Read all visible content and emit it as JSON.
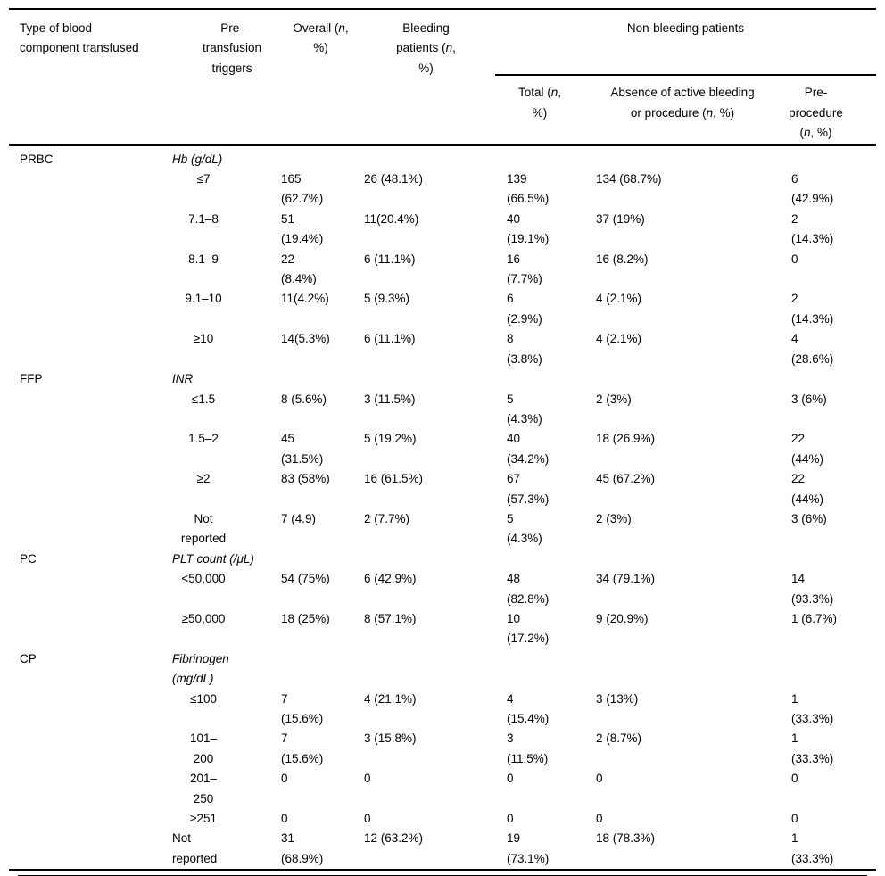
{
  "colors": {
    "text": "#000000",
    "rule": "#000000",
    "background": "#ffffff"
  },
  "table": {
    "columns": {
      "component": "Type of blood\ncomponent transfused",
      "triggers": "Pre-\ntransfusion\ntriggers",
      "overall": "Overall (*n*,\n%)",
      "bleeding": "Bleeding\npatients (*n*,\n%)",
      "non_bleeding_group": "Non-bleeding patients",
      "total": "Total (*n*,\n%)",
      "absence": "Absence of active bleeding\nor procedure (*n*, %)",
      "pre_procedure": "Pre-\nprocedure\n(*n*, %)"
    },
    "sections": [
      {
        "component": "PRBC",
        "trigger_label": "Hb (g/dL)",
        "rows": [
          {
            "trigger": "≤7",
            "overall": "165\n(62.7%)",
            "bleeding": "26 (48.1%)",
            "total": "139\n(66.5%)",
            "absence": "134 (68.7%)",
            "pre": "6\n(42.9%)"
          },
          {
            "trigger": "7.1–8",
            "overall": "51\n(19.4%)",
            "bleeding": "11(20.4%)",
            "total": "40\n(19.1%)",
            "absence": "37 (19%)",
            "pre": "2\n(14.3%)"
          },
          {
            "trigger": "8.1–9",
            "overall": "22\n(8.4%)",
            "bleeding": "6 (11.1%)",
            "total": "16\n(7.7%)",
            "absence": "16 (8.2%)",
            "pre": "0"
          },
          {
            "trigger": "9.1–10",
            "overall": "11(4.2%)",
            "bleeding": "5 (9.3%)",
            "total": "6\n(2.9%)",
            "absence": "4 (2.1%)",
            "pre": "2\n(14.3%)"
          },
          {
            "trigger": "≥10",
            "overall": "14(5.3%)",
            "bleeding": "6 (11.1%)",
            "total": "8\n(3.8%)",
            "absence": "4 (2.1%)",
            "pre": "4\n(28.6%)"
          }
        ]
      },
      {
        "component": "FFP",
        "trigger_label": "INR",
        "rows": [
          {
            "trigger": "≤1.5",
            "overall": "8 (5.6%)",
            "bleeding": "3 (11.5%)",
            "total": "5\n(4.3%)",
            "absence": "2 (3%)",
            "pre": "3 (6%)"
          },
          {
            "trigger": "1.5–2",
            "overall": "45\n(31.5%)",
            "bleeding": "5 (19.2%)",
            "total": "40\n(34.2%)",
            "absence": "18 (26.9%)",
            "pre": "22\n(44%)"
          },
          {
            "trigger": "≥2",
            "overall": "83 (58%)",
            "bleeding": "16 (61.5%)",
            "total": "67\n(57.3%)",
            "absence": "45 (67.2%)",
            "pre": "22\n(44%)"
          },
          {
            "trigger": "Not\nreported",
            "overall": "7 (4.9)",
            "bleeding": "2 (7.7%)",
            "total": "5\n(4.3%)",
            "absence": "2 (3%)",
            "pre": "3 (6%)"
          }
        ]
      },
      {
        "component": "PC",
        "trigger_label": "PLT count (/μL)",
        "rows": [
          {
            "trigger": "<50,000",
            "overall": "54 (75%)",
            "bleeding": "6 (42.9%)",
            "total": "48\n(82.8%)",
            "absence": "34 (79.1%)",
            "pre": "14\n(93.3%)"
          },
          {
            "trigger": "≥50,000",
            "overall": "18 (25%)",
            "bleeding": "8 (57.1%)",
            "total": "10\n(17.2%)",
            "absence": "9 (20.9%)",
            "pre": "1 (6.7%)"
          }
        ]
      },
      {
        "component": "CP",
        "trigger_label": "Fibrinogen (mg/dL)",
        "rows": [
          {
            "trigger": "≤100",
            "overall": "7\n(15.6%)",
            "bleeding": "4 (21.1%)",
            "total": "4\n(15.4%)",
            "absence": "3 (13%)",
            "pre": "1\n(33.3%)"
          },
          {
            "trigger": "101–\n200",
            "overall": "7\n(15.6%)",
            "bleeding": "3 (15.8%)",
            "total": "3\n(11.5%)",
            "absence": "2 (8.7%)",
            "pre": "1\n(33.3%)"
          },
          {
            "trigger": "201–\n250",
            "overall": "0",
            "bleeding": "0",
            "total": "0",
            "absence": "0",
            "pre": "0"
          },
          {
            "trigger": "≥251",
            "overall": "0",
            "bleeding": "0",
            "total": "0",
            "absence": "0",
            "pre": "0"
          },
          {
            "trigger": "Not\nreported",
            "trigger_align": "left",
            "overall": "31\n(68.9%)",
            "bleeding": "12 (63.2%)",
            "total": "19\n(73.1%)",
            "absence": "18 (78.3%)",
            "pre": "1\n(33.3%)"
          }
        ]
      }
    ]
  }
}
